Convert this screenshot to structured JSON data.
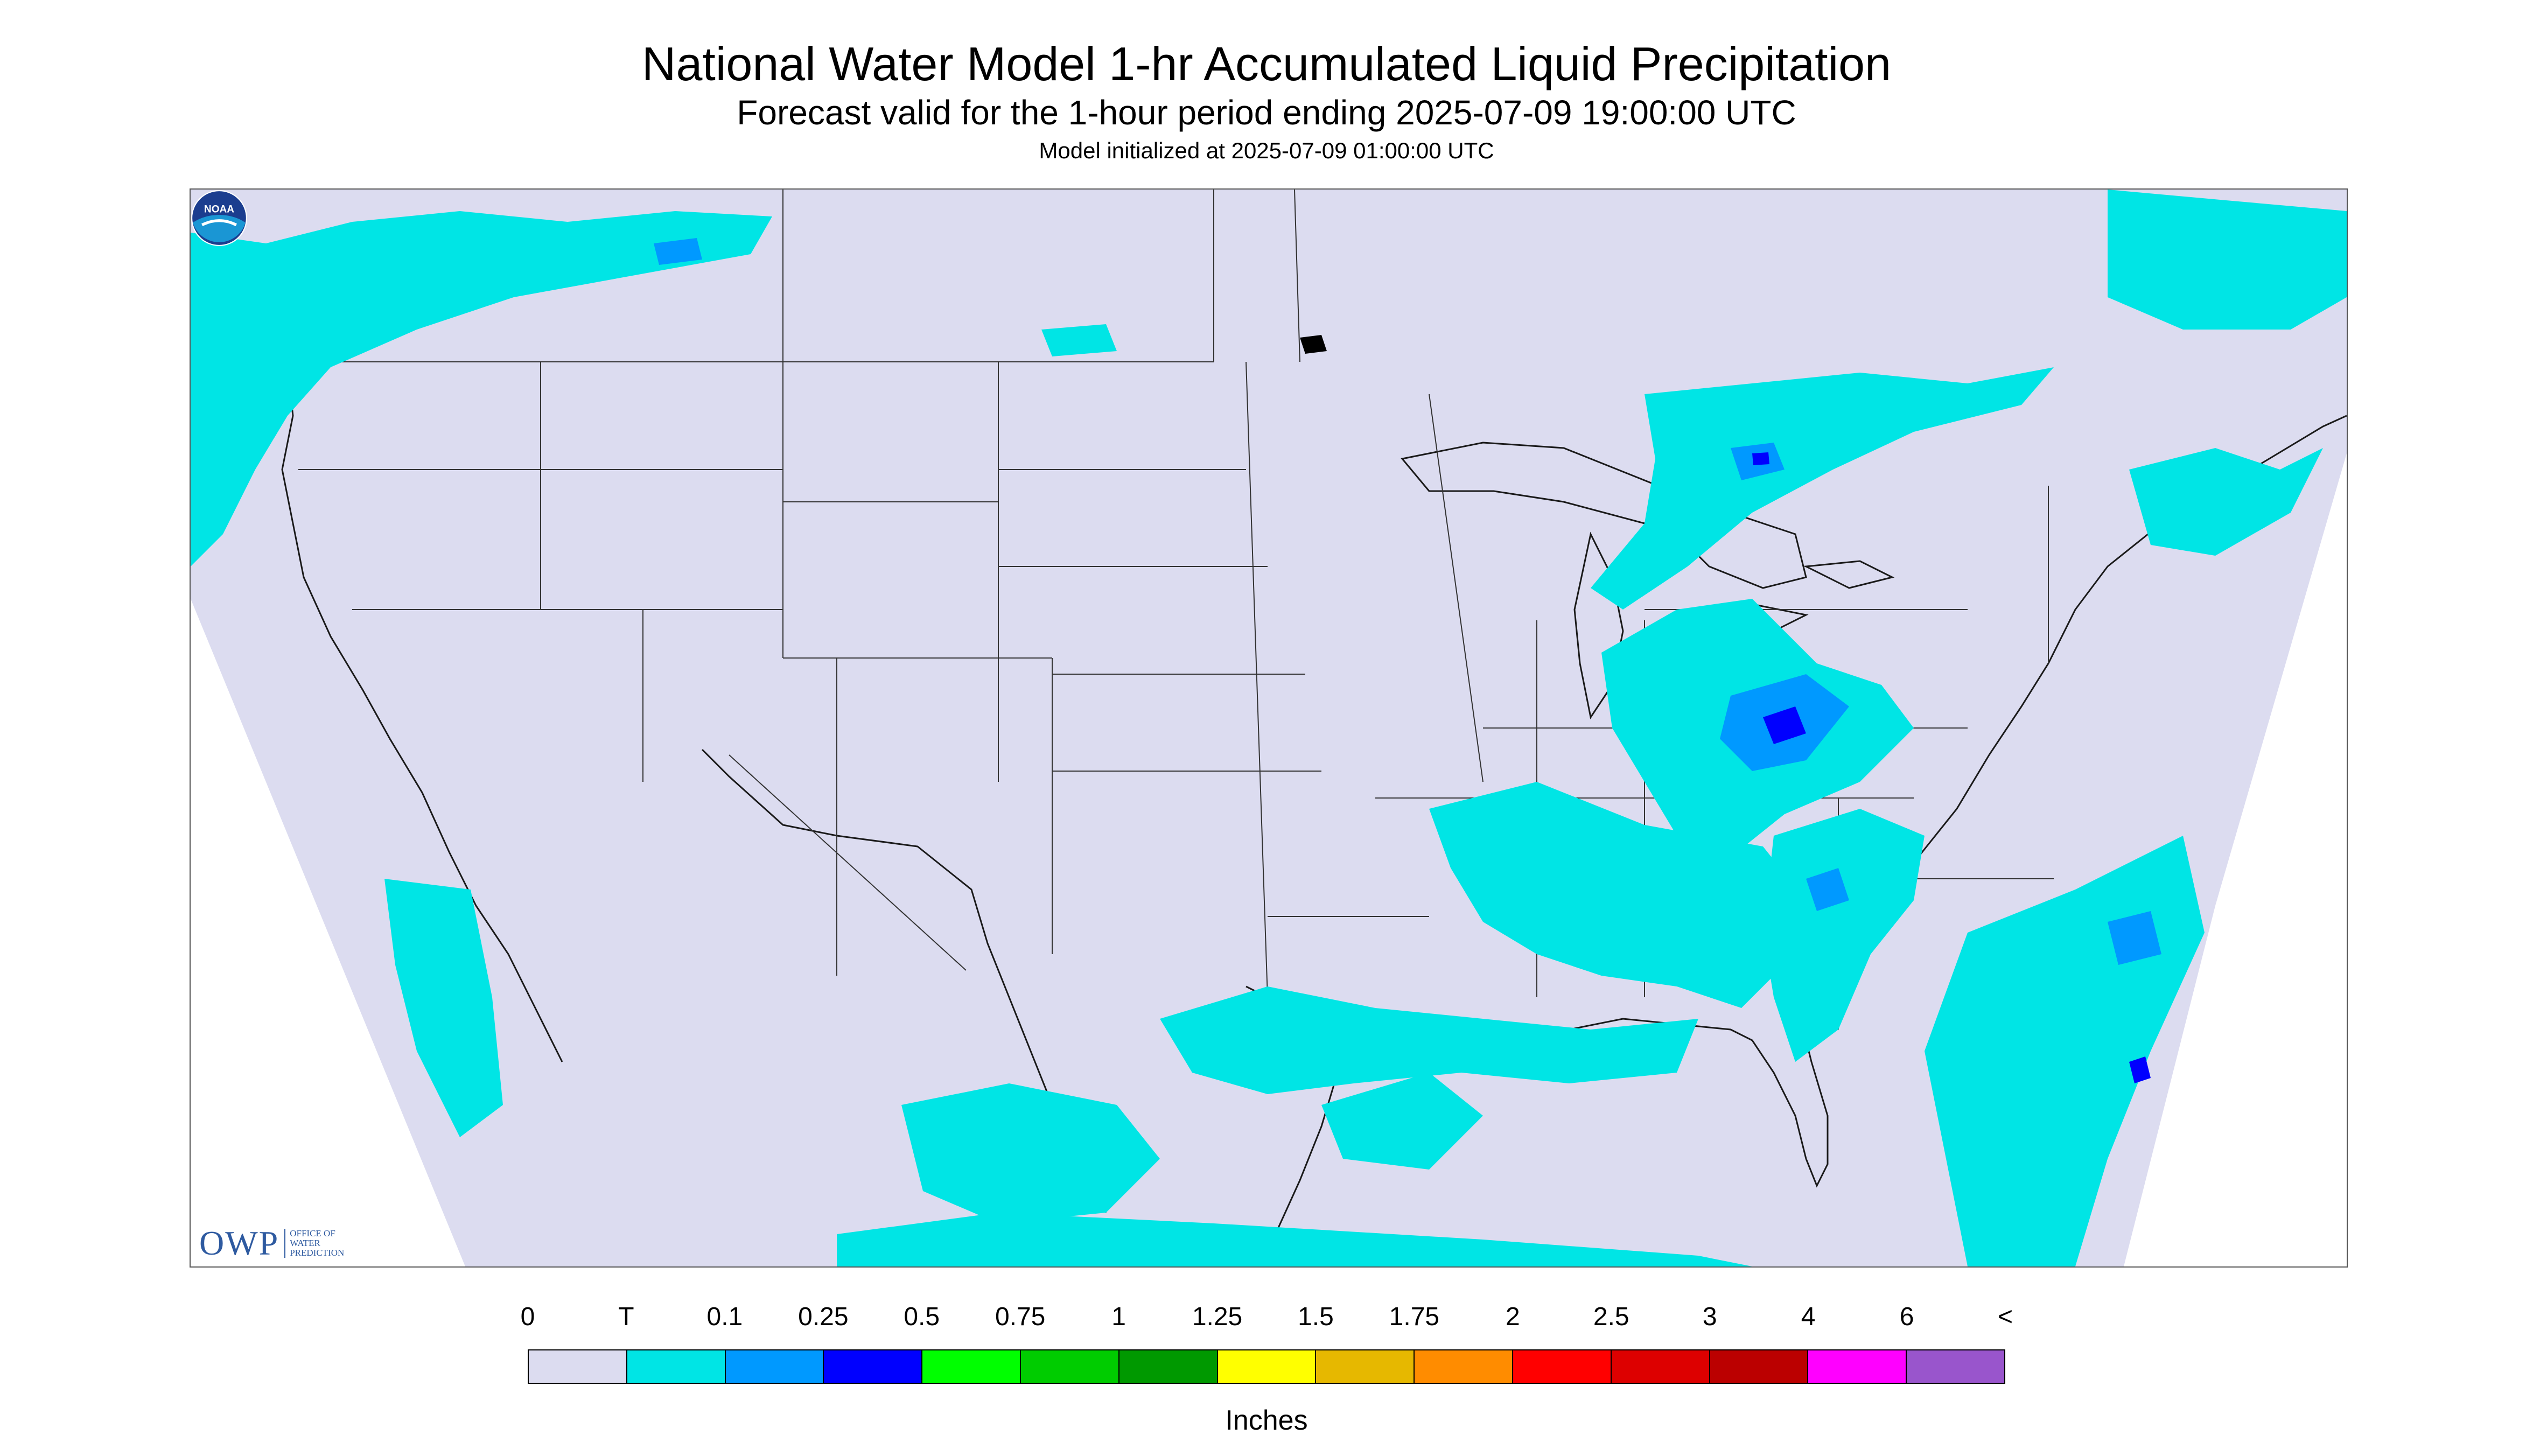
{
  "header": {
    "title": "National Water Model 1-hr Accumulated Liquid Precipitation",
    "subtitle": "Forecast valid for the 1-hour period ending 2025-07-09 19:00:00 UTC",
    "init_line": "Model initialized at 2025-07-09 01:00:00 UTC"
  },
  "map": {
    "background_color": "#dcdcf0",
    "border_line_color": "#333333",
    "precip_areas": [
      {
        "region": "Pacific Northwest",
        "category": "T"
      },
      {
        "region": "Great Lakes / Michigan",
        "category": "T"
      },
      {
        "region": "Ohio Valley / Appalachians",
        "category": "0.1"
      },
      {
        "region": "Southeast / Georgia-Carolinas",
        "category": "T"
      },
      {
        "region": "Gulf Coast",
        "category": "T"
      },
      {
        "region": "Western Atlantic",
        "category": "T"
      },
      {
        "region": "Northeast / Maine",
        "category": "T"
      },
      {
        "region": "Ontario / Quebec",
        "category": "T"
      },
      {
        "region": "Northern Mexico",
        "category": "T"
      },
      {
        "region": "Eastern Pacific",
        "category": "T"
      }
    ]
  },
  "logos": {
    "owp_mark": "OWP",
    "owp_text_1": "OFFICE OF",
    "owp_text_2": "WATER",
    "owp_text_3": "PREDICTION",
    "noaa_text": "NOAA"
  },
  "legend": {
    "labels": [
      "0",
      "T",
      "0.1",
      "0.25",
      "0.5",
      "0.75",
      "1",
      "1.25",
      "1.5",
      "1.75",
      "2",
      "2.5",
      "3",
      "4",
      "6",
      "<"
    ],
    "colors": [
      "#dcdcf0",
      "#00e5e5",
      "#0099ff",
      "#0000ff",
      "#00ff00",
      "#00cc00",
      "#009900",
      "#ffff00",
      "#e6b800",
      "#ff8c00",
      "#ff0000",
      "#dd0000",
      "#bb0000",
      "#ff00ff",
      "#9955cc"
    ],
    "units": "Inches"
  }
}
